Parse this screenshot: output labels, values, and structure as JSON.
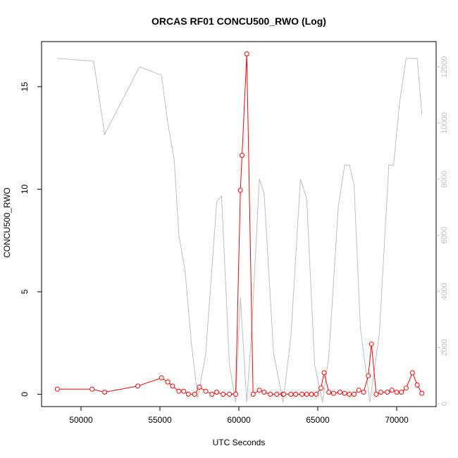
{
  "chart_data": {
    "type": "line",
    "title": "ORCAS RF01 CONCU500_RWO (Log)",
    "xlabel": "UTC Seconds",
    "ylabel": "CONCU500_RWO",
    "xlim": [
      47500,
      72500
    ],
    "ylim": [
      -0.6,
      17.2
    ],
    "y2lim": [
      -100,
      12900
    ],
    "x_ticks": [
      50000,
      55000,
      60000,
      65000,
      70000
    ],
    "x_tick_labels": [
      "50000",
      "55000",
      "60000",
      "65000",
      "70000"
    ],
    "y_ticks": [
      0,
      5,
      10,
      15
    ],
    "y_tick_labels": [
      "0",
      "5",
      "10",
      "15"
    ],
    "y2_ticks": [
      0,
      2000,
      4000,
      6000,
      8000,
      10000,
      12000
    ],
    "y2_tick_labels": [
      "0",
      "2000",
      "4000",
      "6000",
      "8000",
      "10000",
      "12000"
    ],
    "grid": false,
    "colors": {
      "primary": "#ff0000",
      "secondary": "#bebebe",
      "axis": "#000000"
    },
    "series": [
      {
        "axis": "left",
        "x": [
          48500,
          50700,
          51500,
          53600,
          55100,
          55500,
          55800,
          56200,
          56500,
          56800,
          57200,
          57500,
          57900,
          58300,
          58600,
          59000,
          59400,
          59800,
          60100,
          60200,
          60500,
          60900,
          61300,
          61600,
          62000,
          62400,
          62800,
          62850,
          63300,
          63600,
          64000,
          64300,
          64600,
          64900,
          65200,
          65400,
          65700,
          66000,
          66400,
          66700,
          67000,
          67300,
          67600,
          67900,
          68200,
          68400,
          68700,
          69000,
          69400,
          69700,
          70000,
          70300,
          70600,
          71000,
          71300,
          71600
        ],
        "y": [
          0.25,
          0.25,
          0.1,
          0.4,
          0.8,
          0.6,
          0.4,
          0.15,
          0.15,
          0.0,
          0.0,
          0.35,
          0.15,
          0.0,
          0.1,
          0.0,
          0.0,
          0.0,
          9.95,
          11.65,
          16.6,
          0.0,
          0.2,
          0.1,
          0.0,
          0.0,
          0.0,
          0.0,
          0.0,
          0.0,
          0.0,
          0.0,
          0.0,
          0.0,
          0.3,
          1.05,
          0.1,
          0.05,
          0.1,
          0.05,
          0.0,
          0.0,
          0.2,
          0.1,
          0.9,
          2.45,
          0.0,
          0.1,
          0.1,
          0.2,
          0.1,
          0.1,
          0.3,
          1.05,
          0.45,
          0.05
        ]
      },
      {
        "axis": "right",
        "x": [
          48500,
          50800,
          51500,
          53700,
          55100,
          55500,
          55900,
          56200,
          56600,
          57000,
          57400,
          57900,
          58600,
          58900,
          59400,
          59800,
          60100,
          60500,
          60800,
          61300,
          61600,
          62200,
          62800,
          63300,
          63900,
          64300,
          64800,
          65300,
          65700,
          66300,
          66700,
          67000,
          67300,
          67700,
          68300,
          68900,
          69500,
          69800,
          70200,
          70600,
          70900,
          71300,
          71600
        ],
        "y": [
          12300,
          12200,
          9600,
          12000,
          11700,
          10000,
          8700,
          6000,
          4700,
          2100,
          200,
          1800,
          7200,
          7400,
          1400,
          50,
          3800,
          50,
          2500,
          8000,
          7500,
          1800,
          50,
          2400,
          8000,
          7300,
          1400,
          50,
          1700,
          7000,
          8500,
          8500,
          7800,
          2700,
          50,
          2500,
          8500,
          8500,
          10800,
          12300,
          12300,
          12300,
          10300
        ]
      }
    ]
  }
}
